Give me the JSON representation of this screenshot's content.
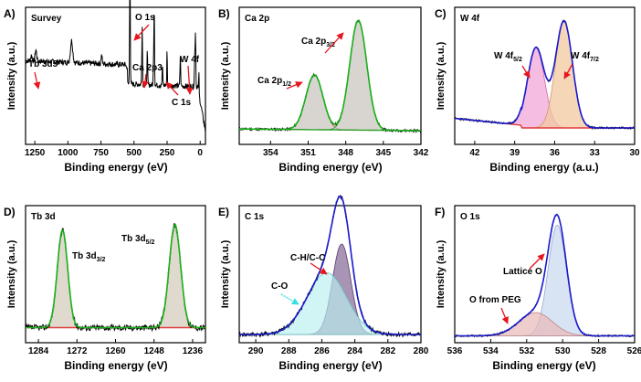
{
  "figure": {
    "panels": [
      {
        "letter": "A)",
        "name": "Survey",
        "xlabel": "Binding energy (eV)",
        "ylabel": "Intensity (a.u.)",
        "xrange": [
          1320,
          -40
        ],
        "xticks": [
          1250,
          1000,
          750,
          500,
          250,
          0
        ],
        "annotations": [
          {
            "text": "O 1s",
            "arrow": true
          },
          {
            "text": "Tb 3d5",
            "arrow": true
          },
          {
            "text": "Ca 2p3",
            "arrow": true
          },
          {
            "text": "W 4f",
            "arrow": true
          },
          {
            "text": "C 1s",
            "arrow": true
          }
        ]
      },
      {
        "letter": "B)",
        "name": "Ca 2p",
        "xlabel": "Binding energy (eV)",
        "ylabel": "Intensity (a.u.)",
        "xrange": [
          356.5,
          342
        ],
        "xticks": [
          354,
          351,
          348,
          345,
          342
        ],
        "annotations": [
          {
            "text": "Ca 2p",
            "sub": "3/2"
          },
          {
            "text": "Ca 2p",
            "sub": "1/2"
          }
        ]
      },
      {
        "letter": "C)",
        "name": "W 4f",
        "xlabel": "Binding energy (a.u.)",
        "ylabel": "Intensity (a.u.)",
        "xrange": [
          43.5,
          30
        ],
        "xticks": [
          42,
          39,
          36,
          33,
          30
        ],
        "annotations": [
          {
            "text": "W 4f",
            "sub": "5/2"
          },
          {
            "text": "W 4f",
            "sub": "7/2"
          }
        ]
      },
      {
        "letter": "D)",
        "name": "Tb 3d",
        "xlabel": "Binding energy (eV)",
        "ylabel": "Intensity (a.u.)",
        "xrange": [
          1288,
          1232
        ],
        "xticks": [
          1284,
          1272,
          1260,
          1248,
          1236
        ],
        "annotations": [
          {
            "text": "Tb 3d",
            "sub": "3/2"
          },
          {
            "text": "Tb 3d",
            "sub": "5/2"
          }
        ]
      },
      {
        "letter": "E)",
        "name": "C 1s",
        "xlabel": "Binding energy (eV)",
        "ylabel": "Intensity (a.u.)",
        "xrange": [
          291,
          280
        ],
        "xticks": [
          290,
          288,
          286,
          284,
          282,
          280
        ],
        "annotations": [
          {
            "text": "C-H/C-C"
          },
          {
            "text": "C-O"
          }
        ]
      },
      {
        "letter": "F)",
        "name": "O 1s",
        "xlabel": "Binding energy (eV)",
        "ylabel": "Intensity (a.u.)",
        "xrange": [
          536,
          526
        ],
        "xticks": [
          536,
          534,
          532,
          530,
          528,
          526
        ],
        "annotations": [
          {
            "text": "Lattice O"
          },
          {
            "text": "O from PEG"
          }
        ]
      }
    ]
  },
  "chart_data": [
    {
      "type": "line",
      "title": "Survey",
      "xlabel": "Binding energy (eV)",
      "ylabel": "Intensity (a.u.)",
      "xlim": [
        1320,
        -40
      ],
      "peaks": [
        {
          "label": "Tb 3d5",
          "x": 1242
        },
        {
          "label": "O 1s",
          "x": 531
        },
        {
          "label": "Ca 2p3",
          "x": 347
        },
        {
          "label": "C 1s",
          "x": 285
        },
        {
          "label": "W 4f",
          "x": 35
        }
      ],
      "series": [
        {
          "name": "survey",
          "color": "#000000"
        }
      ]
    },
    {
      "type": "line",
      "title": "Ca 2p",
      "xlabel": "Binding energy (eV)",
      "ylabel": "Intensity (a.u.)",
      "xlim": [
        356.5,
        342
      ],
      "components": [
        {
          "name": "Ca 2p1/2",
          "center": 350.5,
          "fwhm": 1.6,
          "height": 0.5
        },
        {
          "name": "Ca 2p3/2",
          "center": 347,
          "fwhm": 1.6,
          "height": 1.0
        }
      ],
      "series": [
        {
          "name": "data",
          "color": "#000000"
        },
        {
          "name": "fit",
          "color": "#1ab01a"
        }
      ]
    },
    {
      "type": "line",
      "title": "W 4f",
      "xlabel": "Binding energy (a.u.)",
      "ylabel": "Intensity (a.u.)",
      "xlim": [
        43.5,
        30
      ],
      "components": [
        {
          "name": "W 4f5/2",
          "center": 37.4,
          "fwhm": 1.5,
          "height": 0.75
        },
        {
          "name": "W 4f7/2",
          "center": 35.3,
          "fwhm": 1.5,
          "height": 1.0
        }
      ],
      "series": [
        {
          "name": "data",
          "color": "#000000"
        },
        {
          "name": "fit",
          "color": "#1a1ad0"
        }
      ]
    },
    {
      "type": "line",
      "title": "Tb 3d",
      "xlabel": "Binding energy (eV)",
      "ylabel": "Intensity (a.u.)",
      "xlim": [
        1288,
        1232
      ],
      "components": [
        {
          "name": "Tb 3d3/2",
          "center": 1276.5,
          "fwhm": 3.8,
          "height": 0.95
        },
        {
          "name": "Tb 3d5/2",
          "center": 1241.5,
          "fwhm": 4.2,
          "height": 1.0
        }
      ],
      "series": [
        {
          "name": "data",
          "color": "#000000"
        },
        {
          "name": "fit",
          "color": "#1ab01a"
        }
      ]
    },
    {
      "type": "line",
      "title": "C 1s",
      "xlabel": "Binding energy (eV)",
      "ylabel": "Intensity (a.u.)",
      "xlim": [
        291,
        280
      ],
      "components": [
        {
          "name": "C-H/C-C",
          "center": 284.8,
          "fwhm": 1.3,
          "height": 0.66
        },
        {
          "name": "C-O",
          "center": 285.7,
          "fwhm": 2.8,
          "height": 0.45
        }
      ],
      "series": [
        {
          "name": "data",
          "color": "#000000"
        },
        {
          "name": "fit",
          "color": "#1a1ad0"
        }
      ]
    },
    {
      "type": "line",
      "title": "O 1s",
      "xlabel": "Binding energy (eV)",
      "ylabel": "Intensity (a.u.)",
      "xlim": [
        536,
        526
      ],
      "components": [
        {
          "name": "Lattice O",
          "center": 530.3,
          "fwhm": 1.2,
          "height": 0.95
        },
        {
          "name": "O from PEG",
          "center": 531.5,
          "fwhm": 2.2,
          "height": 0.2
        }
      ],
      "series": [
        {
          "name": "data",
          "color": "#000000"
        },
        {
          "name": "fit",
          "color": "#1a1ad0"
        }
      ]
    }
  ]
}
